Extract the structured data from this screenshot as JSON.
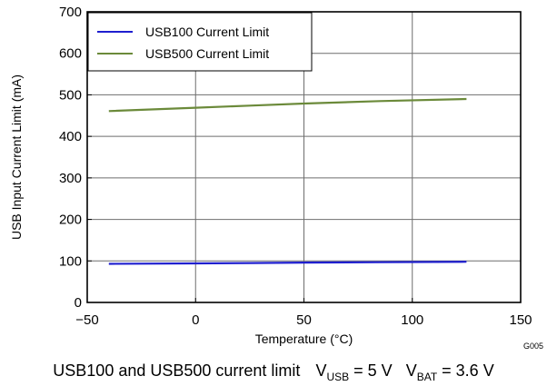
{
  "caption": {
    "text": "USB100 and USB500 current limit",
    "vusb_prefix": "V",
    "vusb_sub": "USB",
    "vusb_value": " = 5 V",
    "vbat_prefix": "V",
    "vbat_sub": "BAT",
    "vbat_value": " = 3.6 V"
  },
  "figure_id": "G005",
  "chart_data": {
    "type": "line",
    "xlabel": "Temperature (°C)",
    "ylabel": "USB Input Current Limit (mA)",
    "xlim": [
      -50,
      150
    ],
    "ylim": [
      0,
      700
    ],
    "xticks": [
      -50,
      0,
      50,
      100,
      150
    ],
    "yticks": [
      0,
      100,
      200,
      300,
      400,
      500,
      600,
      700
    ],
    "xtick_labels": [
      "−50",
      "0",
      "50",
      "100",
      "150"
    ],
    "ytick_labels": [
      "0",
      "100",
      "200",
      "300",
      "400",
      "500",
      "600",
      "700"
    ],
    "grid": true,
    "legend_position": "top-left",
    "series": [
      {
        "name": "USB100 Current Limit",
        "color": "#1f1fcf",
        "x": [
          -40,
          0,
          25,
          50,
          85,
          125
        ],
        "y": [
          93,
          94,
          95,
          96,
          97,
          98
        ]
      },
      {
        "name": "USB500 Current Limit",
        "color": "#6b8a3a",
        "x": [
          -40,
          0,
          25,
          50,
          85,
          125
        ],
        "y": [
          461,
          469,
          474,
          479,
          485,
          490
        ]
      }
    ]
  }
}
